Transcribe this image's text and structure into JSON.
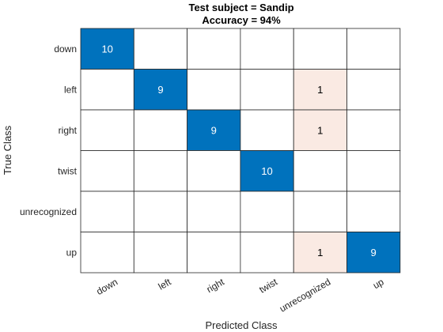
{
  "chart_data": {
    "type": "heatmap",
    "title": "Test subject = Sandip",
    "subtitle": "Accuracy = 94%",
    "xlabel": "Predicted Class",
    "ylabel": "True Class",
    "row_labels": [
      "down",
      "left",
      "right",
      "twist",
      "unrecognized",
      "up"
    ],
    "col_labels": [
      "down",
      "left",
      "right",
      "twist",
      "unrecognized",
      "up"
    ],
    "values": [
      [
        10,
        0,
        0,
        0,
        0,
        0
      ],
      [
        0,
        9,
        0,
        0,
        1,
        0
      ],
      [
        0,
        0,
        9,
        0,
        1,
        0
      ],
      [
        0,
        0,
        0,
        10,
        0,
        0
      ],
      [
        0,
        0,
        0,
        0,
        0,
        0
      ],
      [
        0,
        0,
        0,
        0,
        1,
        9
      ]
    ],
    "colors": {
      "diagonal": "#0072bd",
      "off_diagonal": "#d95319",
      "grid": "#262626",
      "empty": "#ffffff"
    }
  }
}
